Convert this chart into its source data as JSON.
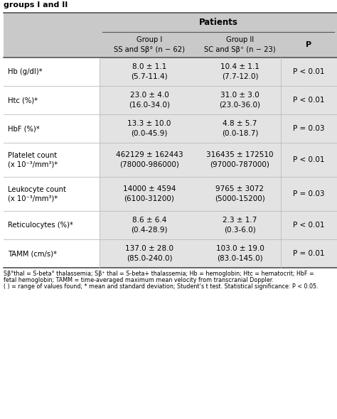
{
  "title_text": "groups I and II",
  "header_main": "Patients",
  "header_col2": "Group I\nSS and Sβ° (n − 62)",
  "header_col3": "Group II\nSC and Sβ⁺ (n − 23)",
  "header_col4": "P",
  "rows": [
    {
      "label": "Hb (g/dl)*",
      "col2": "8.0 ± 1.1\n(5.7-11.4)",
      "col3": "10.4 ± 1.1\n(7.7-12.0)",
      "col4": "P < 0.01"
    },
    {
      "label": "Htc (%)*",
      "col2": "23.0 ± 4.0\n(16.0-34.0)",
      "col3": "31.0 ± 3.0\n(23.0-36.0)",
      "col4": "P < 0.01"
    },
    {
      "label": "HbF (%)*",
      "col2": "13.3 ± 10.0\n(0.0-45.9)",
      "col3": "4.8 ± 5.7\n(0.0-18.7)",
      "col4": "P = 0.03"
    },
    {
      "label": "Platelet count\n(x 10⁻³/mm³)*",
      "col2": "462129 ± 162443\n(78000-986000)",
      "col3": "316435 ± 172510\n(97000-787000)",
      "col4": "P < 0.01"
    },
    {
      "label": "Leukocyte count\n(x 10⁻³/mm³)*",
      "col2": "14000 ± 4594\n(6100-31200)",
      "col3": "9765 ± 3072\n(5000-15200)",
      "col4": "P = 0.03"
    },
    {
      "label": "Reticulocytes (%)*",
      "col2": "8.6 ± 6.4\n(0.4-28.9)",
      "col3": "2.3 ± 1.7\n(0.3-6.0)",
      "col4": "P < 0.01"
    },
    {
      "label": "TAMM (cm/s)*",
      "col2": "137.0 ± 28.0\n(85.0-240.0)",
      "col3": "103.0 ± 19.0\n(83.0-145.0)",
      "col4": "P = 0.01"
    }
  ],
  "footnote_line1": "Sβ°thal = S-beta° thalassemia; Sβ⁺ thal = S-beta+ thalassemia; Hb = hemoglobin; Htc = hematocrit; HbF =",
  "footnote_line2": "fetal hemoglobin; TAMM = time-averaged maximum mean velocity from transcranial Doppler.",
  "footnote_line3": "( ) = range of values found; * mean and standard deviation; Student’s t test. Statistical significance: P < 0.05.",
  "bg_header_dark": "#c9c9c9",
  "bg_data_gray": "#e3e3e3",
  "bg_white": "#ffffff",
  "line_color_heavy": "#555555",
  "line_color_light": "#bbbbbb"
}
